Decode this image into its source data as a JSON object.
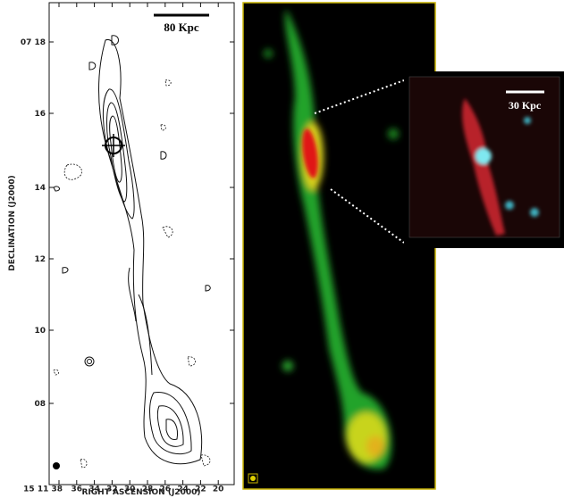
{
  "left_panel": {
    "scale_bar_label": "80 Kpc",
    "y_axis_title": "DECLINATION (J2000)",
    "x_axis_title": "RIGHT ASCENSION (J2000)",
    "y_tick_labels": [
      "07 18",
      "16",
      "14",
      "12",
      "10",
      "08"
    ],
    "x_tick_labels": [
      "15 11 38",
      "36",
      "34",
      "32",
      "30",
      "28",
      "26",
      "24",
      "22",
      "20"
    ]
  },
  "inset": {
    "scale_bar_label": "30 Kpc"
  }
}
